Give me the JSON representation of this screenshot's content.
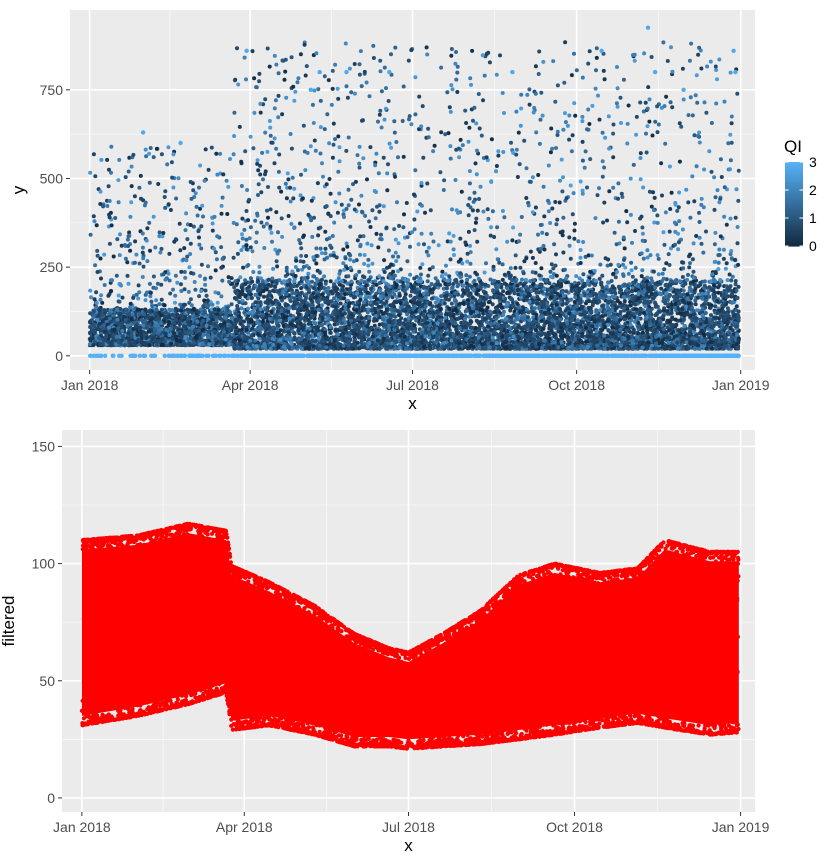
{
  "chart_data": [
    {
      "type": "scatter",
      "xlabel": "x",
      "ylabel": "y",
      "x_tick_labels": [
        "Jan 2018",
        "Apr 2018",
        "Jul 2018",
        "Oct 2018",
        "Jan 2019"
      ],
      "x_tick_dates": [
        "2018-01-01",
        "2018-04-01",
        "2018-07-01",
        "2018-10-01",
        "2019-01-01"
      ],
      "xlim": [
        "2017-12-21",
        "2019-01-09"
      ],
      "y_tick_labels": [
        "0",
        "250",
        "500",
        "750"
      ],
      "y_ticks": [
        0,
        250,
        500,
        750
      ],
      "ylim": [
        -40,
        975
      ],
      "grid": true,
      "color_variable": "QI",
      "color_scale": {
        "low": 0,
        "high": 3,
        "low_color": "#132b43",
        "high_color": "#56b1f7"
      },
      "legend": {
        "title": "QI",
        "labels": [
          "3",
          "2",
          "1",
          "0"
        ],
        "values": [
          3,
          2,
          1,
          0
        ],
        "placement": "right"
      },
      "series_summary": [
        {
          "segment": "Jan-Mar 2018",
          "x_range": [
            "2018-01-01",
            "2018-03-23"
          ],
          "baseline_band": [
            30,
            130
          ],
          "outlier_max": 630,
          "zero_points": true
        },
        {
          "segment": "Mar 2018-Jan 2019",
          "x_range": [
            "2018-03-23",
            "2018-12-31"
          ],
          "baseline_band": [
            20,
            210
          ],
          "outlier_max": 925,
          "zero_points": true
        }
      ],
      "notable_points": [
        {
          "x": "2018-01-31",
          "y": 630
        },
        {
          "x": "2018-02-21",
          "y": 600
        },
        {
          "x": "2018-03-30",
          "y": 860
        },
        {
          "x": "2018-05-10",
          "y": 800
        },
        {
          "x": "2018-05-25",
          "y": 800
        },
        {
          "x": "2018-05-05",
          "y": 750
        },
        {
          "x": "2018-06-18",
          "y": 800
        },
        {
          "x": "2018-08-26",
          "y": 800
        },
        {
          "x": "2018-10-15",
          "y": 860
        },
        {
          "x": "2018-11-10",
          "y": 925
        },
        {
          "x": "2018-11-14",
          "y": 800
        },
        {
          "x": "2018-11-30",
          "y": 750
        },
        {
          "x": "2018-12-28",
          "y": 860
        },
        {
          "x": "2018-12-29",
          "y": 800
        }
      ]
    },
    {
      "type": "scatter",
      "xlabel": "x",
      "ylabel": "filtered",
      "x_tick_labels": [
        "Jan 2018",
        "Apr 2018",
        "Jul 2018",
        "Oct 2018",
        "Jan 2019"
      ],
      "x_tick_dates": [
        "2018-01-01",
        "2018-04-01",
        "2018-07-01",
        "2018-10-01",
        "2019-01-01"
      ],
      "xlim": [
        "2017-12-21",
        "2019-01-09"
      ],
      "y_tick_labels": [
        "0",
        "50",
        "100",
        "150"
      ],
      "y_ticks": [
        0,
        50,
        100,
        150
      ],
      "ylim": [
        -6,
        157
      ],
      "grid": true,
      "point_color": "#ff0000",
      "envelope": [
        {
          "x": "2018-01-01",
          "low": 31,
          "high": 110
        },
        {
          "x": "2018-02-01",
          "low": 35,
          "high": 112
        },
        {
          "x": "2018-03-01",
          "low": 40,
          "high": 117
        },
        {
          "x": "2018-03-22",
          "low": 45,
          "high": 114
        },
        {
          "x": "2018-03-25",
          "low": 29,
          "high": 99
        },
        {
          "x": "2018-04-15",
          "low": 31,
          "high": 92
        },
        {
          "x": "2018-05-10",
          "low": 27,
          "high": 82
        },
        {
          "x": "2018-06-01",
          "low": 22,
          "high": 70
        },
        {
          "x": "2018-06-20",
          "low": 22,
          "high": 64
        },
        {
          "x": "2018-07-01",
          "low": 21,
          "high": 62
        },
        {
          "x": "2018-07-20",
          "low": 22,
          "high": 70
        },
        {
          "x": "2018-08-10",
          "low": 23,
          "high": 80
        },
        {
          "x": "2018-08-31",
          "low": 25,
          "high": 95
        },
        {
          "x": "2018-09-20",
          "low": 27,
          "high": 100
        },
        {
          "x": "2018-10-15",
          "low": 30,
          "high": 96
        },
        {
          "x": "2018-11-05",
          "low": 32,
          "high": 98
        },
        {
          "x": "2018-11-20",
          "low": 30,
          "high": 110
        },
        {
          "x": "2018-12-15",
          "low": 27,
          "high": 105
        },
        {
          "x": "2018-12-31",
          "low": 28,
          "high": 105
        }
      ]
    }
  ]
}
